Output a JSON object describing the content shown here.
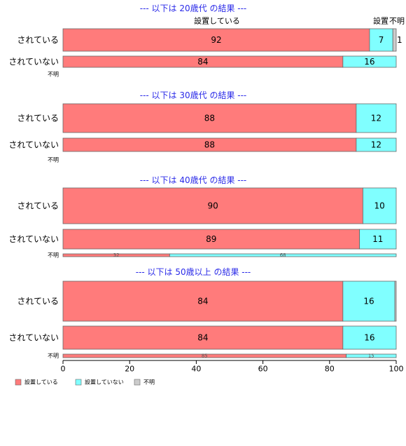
{
  "chart_data": {
    "type": "bar",
    "orientation": "horizontal",
    "stacked": "percent",
    "series_names": [
      "設置している",
      "設置していない",
      "不明"
    ],
    "colors": [
      "#ff7b7b",
      "#80ffff",
      "#cccccc"
    ],
    "header_labels": [
      "設置している",
      "設置",
      "不明"
    ],
    "xlim": [
      0,
      100
    ],
    "xticks": [
      0,
      20,
      40,
      60,
      80,
      100
    ],
    "legend_position": "bottom-left",
    "panels": [
      {
        "title": "--- 以下は 20歳代 の結果 ---",
        "rows": [
          {
            "label": "されている",
            "values": [
              92,
              7,
              1
            ],
            "labels": [
              "92",
              "7",
              "1"
            ]
          },
          {
            "label": "されていない",
            "values": [
              84,
              16,
              0
            ],
            "labels": [
              "84",
              "16",
              ""
            ]
          },
          {
            "label": "不明",
            "values": [],
            "labels": []
          }
        ]
      },
      {
        "title": "--- 以下は 30歳代 の結果 ---",
        "rows": [
          {
            "label": "されている",
            "values": [
              88,
              12,
              0
            ],
            "labels": [
              "88",
              "12",
              ""
            ]
          },
          {
            "label": "されていない",
            "values": [
              88,
              12,
              0
            ],
            "labels": [
              "88",
              "12",
              ""
            ]
          },
          {
            "label": "不明",
            "values": [],
            "labels": []
          }
        ]
      },
      {
        "title": "--- 以下は 40歳代 の結果 ---",
        "rows": [
          {
            "label": "されている",
            "values": [
              90,
              10,
              0
            ],
            "labels": [
              "90",
              "10",
              ""
            ]
          },
          {
            "label": "されていない",
            "values": [
              89,
              11,
              0
            ],
            "labels": [
              "89",
              "11",
              ""
            ]
          },
          {
            "label": "不明",
            "values": [
              32,
              68,
              0
            ],
            "labels": [
              "32",
              "68",
              ""
            ]
          }
        ]
      },
      {
        "title": "--- 以下は 50歳以上 の結果 ---",
        "rows": [
          {
            "label": "されている",
            "values": [
              84,
              15.6,
              0.4
            ],
            "labels": [
              "84",
              "16",
              ""
            ]
          },
          {
            "label": "されていない",
            "values": [
              84,
              16,
              0
            ],
            "labels": [
              "84",
              "16",
              ""
            ]
          },
          {
            "label": "不明",
            "values": [
              85,
              15,
              0
            ],
            "labels": [
              "85",
              "15",
              ""
            ]
          }
        ]
      }
    ]
  }
}
